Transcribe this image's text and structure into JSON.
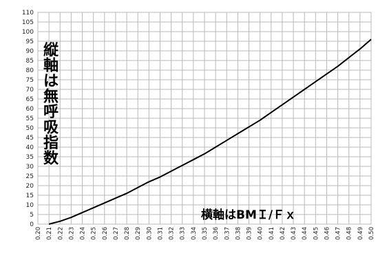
{
  "chart_data": {
    "type": "line",
    "title": "",
    "ylabel": "縦軸は無呼吸指数",
    "xlabel": "横軸はBMＩ/Ｆｘ",
    "xlim": [
      0.2,
      0.5
    ],
    "ylim": [
      0,
      110
    ],
    "grid": true,
    "x_ticks": [
      "0.20",
      "0.21",
      "0.22",
      "0.23",
      "0.24",
      "0.25",
      "0.26",
      "0.27",
      "0.28",
      "0.29",
      "0.30",
      "0.31",
      "0.32",
      "0.33",
      "0.34",
      "0.35",
      "0.36",
      "0.37",
      "0.38",
      "0.39",
      "0.40",
      "0.41",
      "0.42",
      "0.43",
      "0.44",
      "0.45",
      "0.46",
      "0.47",
      "0.48",
      "0.49",
      "0.50"
    ],
    "y_ticks": [
      "0",
      "5",
      "10",
      "15",
      "20",
      "25",
      "30",
      "35",
      "40",
      "45",
      "50",
      "55",
      "60",
      "65",
      "70",
      "75",
      "80",
      "85",
      "90",
      "95",
      "100",
      "105",
      "110"
    ],
    "series": [
      {
        "color": "#000000",
        "x": [
          0.21,
          0.22,
          0.23,
          0.24,
          0.25,
          0.26,
          0.27,
          0.28,
          0.29,
          0.3,
          0.31,
          0.32,
          0.33,
          0.34,
          0.35,
          0.36,
          0.37,
          0.38,
          0.39,
          0.4,
          0.41,
          0.42,
          0.43,
          0.44,
          0.45,
          0.46,
          0.47,
          0.48,
          0.49,
          0.5
        ],
        "y": [
          0,
          1.5,
          3.5,
          6,
          8.5,
          11,
          13.5,
          16,
          19,
          22,
          24.5,
          27.5,
          30.5,
          33.5,
          36.5,
          40,
          43.5,
          47,
          50.5,
          54,
          58,
          62,
          66,
          70,
          74,
          78,
          82,
          86.5,
          91,
          96
        ]
      }
    ]
  }
}
